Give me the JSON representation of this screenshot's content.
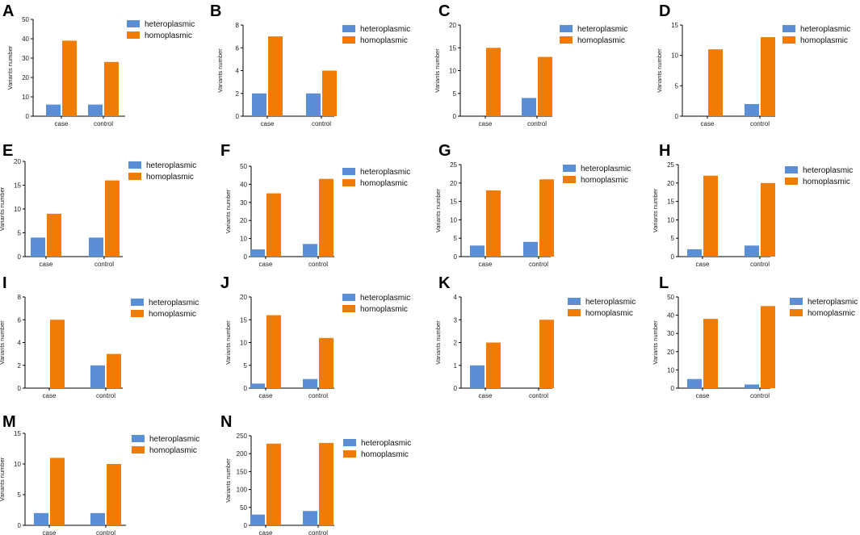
{
  "figure": {
    "colors": {
      "heteroplasmic": "#5b8fd5",
      "homoplasmic": "#f07c06"
    }
  },
  "chart_data": [
    {
      "type": "bar",
      "panel": "A",
      "title": "",
      "xlabel": "",
      "ylabel": "Variants number",
      "categories": [
        "case",
        "control"
      ],
      "ylim": [
        0,
        50
      ],
      "yticks": [
        0,
        10,
        20,
        30,
        40,
        50
      ],
      "series": [
        {
          "name": "heteroplasmic",
          "values": [
            6,
            6
          ]
        },
        {
          "name": "homoplasmic",
          "values": [
            39,
            28
          ]
        }
      ]
    },
    {
      "type": "bar",
      "panel": "B",
      "title": "",
      "xlabel": "",
      "ylabel": "Variants number",
      "categories": [
        "case",
        "control"
      ],
      "ylim": [
        0,
        8
      ],
      "yticks": [
        0,
        2,
        4,
        6,
        8
      ],
      "series": [
        {
          "name": "heteroplasmic",
          "values": [
            2,
            2
          ]
        },
        {
          "name": "homoplasmic",
          "values": [
            7,
            4
          ]
        }
      ]
    },
    {
      "type": "bar",
      "panel": "C",
      "title": "",
      "xlabel": "",
      "ylabel": "Variants number",
      "categories": [
        "case",
        "control"
      ],
      "ylim": [
        0,
        20
      ],
      "yticks": [
        0,
        5,
        10,
        15,
        20
      ],
      "series": [
        {
          "name": "heteroplasmic",
          "values": [
            0,
            4
          ]
        },
        {
          "name": "homoplasmic",
          "values": [
            15,
            13
          ]
        }
      ]
    },
    {
      "type": "bar",
      "panel": "D",
      "title": "",
      "xlabel": "",
      "ylabel": "Variants number",
      "categories": [
        "case",
        "control"
      ],
      "ylim": [
        0,
        15
      ],
      "yticks": [
        0,
        5,
        10,
        15
      ],
      "series": [
        {
          "name": "heteroplasmic",
          "values": [
            0,
            2
          ]
        },
        {
          "name": "homoplasmic",
          "values": [
            11,
            13
          ]
        }
      ]
    },
    {
      "type": "bar",
      "panel": "E",
      "title": "",
      "xlabel": "",
      "ylabel": "Variants number",
      "categories": [
        "case",
        "control"
      ],
      "ylim": [
        0,
        20
      ],
      "yticks": [
        0,
        5,
        10,
        15,
        20
      ],
      "series": [
        {
          "name": "heteroplasmic",
          "values": [
            4,
            4
          ]
        },
        {
          "name": "homoplasmic",
          "values": [
            9,
            16
          ]
        }
      ]
    },
    {
      "type": "bar",
      "panel": "F",
      "title": "",
      "xlabel": "",
      "ylabel": "Variants number",
      "categories": [
        "case",
        "control"
      ],
      "ylim": [
        0,
        50
      ],
      "yticks": [
        0,
        10,
        20,
        30,
        40,
        50
      ],
      "series": [
        {
          "name": "heteroplasmic",
          "values": [
            4,
            7
          ]
        },
        {
          "name": "homoplasmic",
          "values": [
            35,
            43
          ]
        }
      ]
    },
    {
      "type": "bar",
      "panel": "G",
      "title": "",
      "xlabel": "",
      "ylabel": "Variants number",
      "categories": [
        "case",
        "control"
      ],
      "ylim": [
        0,
        25
      ],
      "yticks": [
        0,
        5,
        10,
        15,
        20,
        25
      ],
      "series": [
        {
          "name": "heteroplasmic",
          "values": [
            3,
            4
          ]
        },
        {
          "name": "homoplasmic",
          "values": [
            18,
            21
          ]
        }
      ]
    },
    {
      "type": "bar",
      "panel": "H",
      "title": "",
      "xlabel": "",
      "ylabel": "Variants number",
      "categories": [
        "case",
        "control"
      ],
      "ylim": [
        0,
        25
      ],
      "yticks": [
        0,
        5,
        10,
        15,
        20,
        25
      ],
      "series": [
        {
          "name": "heteroplasmic",
          "values": [
            2,
            3
          ]
        },
        {
          "name": "homoplasmic",
          "values": [
            22,
            20
          ]
        }
      ]
    },
    {
      "type": "bar",
      "panel": "I",
      "title": "",
      "xlabel": "",
      "ylabel": "Variants number",
      "categories": [
        "case",
        "control"
      ],
      "ylim": [
        0,
        8
      ],
      "yticks": [
        0,
        2,
        4,
        6,
        8
      ],
      "series": [
        {
          "name": "heteroplasmic",
          "values": [
            0,
            2
          ]
        },
        {
          "name": "homoplasmic",
          "values": [
            6,
            3
          ]
        }
      ]
    },
    {
      "type": "bar",
      "panel": "J",
      "title": "",
      "xlabel": "",
      "ylabel": "Variants number",
      "categories": [
        "case",
        "control"
      ],
      "ylim": [
        0,
        20
      ],
      "yticks": [
        0,
        5,
        10,
        15,
        20
      ],
      "series": [
        {
          "name": "heteroplasmic",
          "values": [
            1,
            2
          ]
        },
        {
          "name": "homoplasmic",
          "values": [
            16,
            11
          ]
        }
      ]
    },
    {
      "type": "bar",
      "panel": "K",
      "title": "",
      "xlabel": "",
      "ylabel": "Variants number",
      "categories": [
        "case",
        "control"
      ],
      "ylim": [
        0,
        4
      ],
      "yticks": [
        0,
        1,
        2,
        3,
        4
      ],
      "series": [
        {
          "name": "heteroplasmic",
          "values": [
            1,
            0
          ]
        },
        {
          "name": "homoplasmic",
          "values": [
            2,
            3
          ]
        }
      ]
    },
    {
      "type": "bar",
      "panel": "L",
      "title": "",
      "xlabel": "",
      "ylabel": "Variants number",
      "categories": [
        "case",
        "control"
      ],
      "ylim": [
        0,
        50
      ],
      "yticks": [
        0,
        10,
        20,
        30,
        40,
        50
      ],
      "series": [
        {
          "name": "heteroplasmic",
          "values": [
            5,
            2
          ]
        },
        {
          "name": "homoplasmic",
          "values": [
            38,
            45
          ]
        }
      ]
    },
    {
      "type": "bar",
      "panel": "M",
      "title": "",
      "xlabel": "",
      "ylabel": "Variants number",
      "categories": [
        "case",
        "control"
      ],
      "ylim": [
        0,
        15
      ],
      "yticks": [
        0,
        5,
        10,
        15
      ],
      "series": [
        {
          "name": "heteroplasmic",
          "values": [
            2,
            2
          ]
        },
        {
          "name": "homoplasmic",
          "values": [
            11,
            10
          ]
        }
      ]
    },
    {
      "type": "bar",
      "panel": "N",
      "title": "",
      "xlabel": "",
      "ylabel": "Variants number",
      "categories": [
        "case",
        "control"
      ],
      "ylim": [
        0,
        250
      ],
      "yticks": [
        0,
        50,
        100,
        150,
        200,
        250
      ],
      "series": [
        {
          "name": "heteroplasmic",
          "values": [
            30,
            40
          ]
        },
        {
          "name": "homoplasmic",
          "values": [
            228,
            230
          ]
        }
      ]
    }
  ]
}
